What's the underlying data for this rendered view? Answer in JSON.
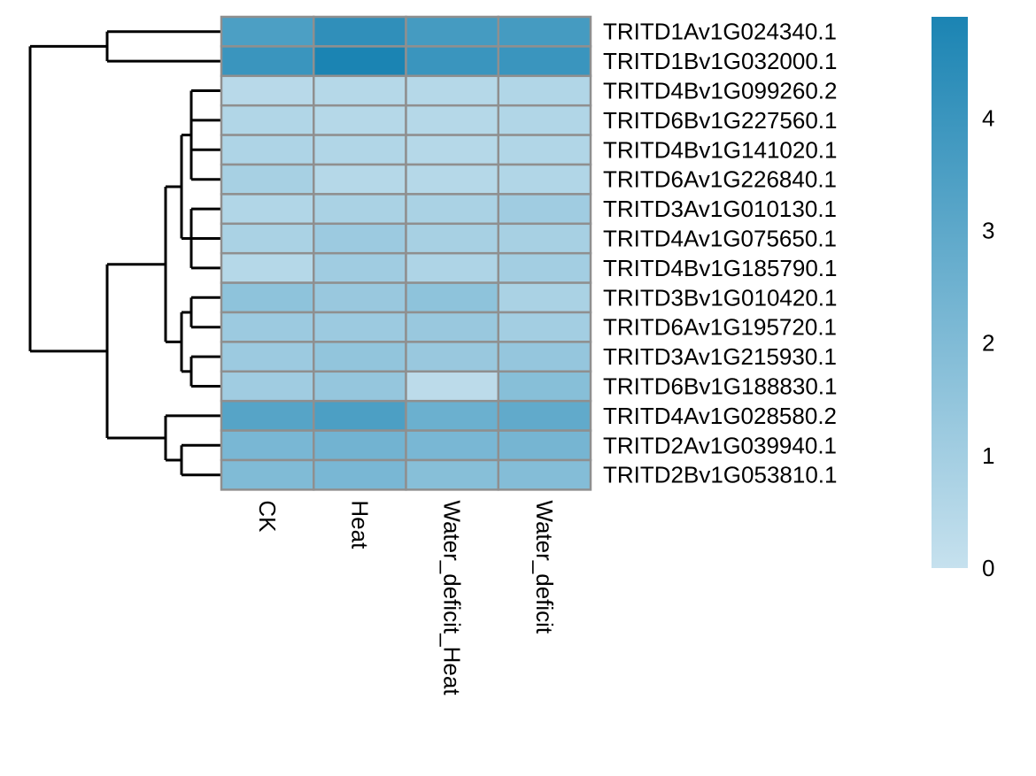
{
  "chart_data": {
    "type": "heatmap",
    "title": "",
    "columns": [
      "CK",
      "Heat",
      "Water_deficit_Heat",
      "Water_deficit"
    ],
    "rows": [
      "TRITD1Av1G024340.1",
      "TRITD1Bv1G032000.1",
      "TRITD4Bv1G099260.2",
      "TRITD6Bv1G227560.1",
      "TRITD4Bv1G141020.1",
      "TRITD6Av1G226840.1",
      "TRITD3Av1G010130.1",
      "TRITD4Av1G075650.1",
      "TRITD4Bv1G185790.1",
      "TRITD3Bv1G010420.1",
      "TRITD6Av1G195720.1",
      "TRITD3Av1G215930.1",
      "TRITD6Bv1G188830.1",
      "TRITD4Av1G028580.2",
      "TRITD2Av1G039940.1",
      "TRITD2Bv1G053810.1"
    ],
    "values": [
      [
        3.5,
        4.3,
        3.7,
        3.7
      ],
      [
        4.0,
        4.9,
        4.0,
        4.0
      ],
      [
        0.4,
        0.5,
        0.5,
        0.6
      ],
      [
        0.6,
        0.5,
        0.5,
        0.6
      ],
      [
        0.7,
        0.6,
        0.5,
        0.6
      ],
      [
        0.9,
        0.5,
        0.5,
        0.6
      ],
      [
        0.6,
        0.8,
        0.8,
        1.1
      ],
      [
        0.8,
        1.2,
        0.9,
        0.9
      ],
      [
        0.5,
        1.1,
        0.7,
        1.0
      ],
      [
        1.6,
        1.3,
        1.6,
        0.8
      ],
      [
        1.2,
        1.2,
        1.3,
        1.0
      ],
      [
        1.2,
        1.5,
        1.3,
        1.4
      ],
      [
        1.1,
        1.4,
        0.3,
        1.8
      ],
      [
        3.2,
        3.5,
        2.6,
        2.9
      ],
      [
        2.2,
        2.4,
        2.2,
        2.3
      ],
      [
        2.0,
        2.2,
        1.8,
        1.9
      ]
    ],
    "legend": {
      "range": [
        0,
        4.9
      ],
      "ticks": [
        0,
        1,
        2,
        3,
        4
      ],
      "color_low": "#c6e1ee",
      "color_high": "#1b84b3"
    },
    "row_dendrogram": {
      "children": [
        {
          "children": [
            0,
            1
          ]
        },
        {
          "children": [
            {
              "children": [
                {
                  "children": [
                    {
                      "children": [
                        2,
                        3,
                        4,
                        5
                      ]
                    },
                    {
                      "children": [
                        6,
                        7,
                        8
                      ]
                    }
                  ]
                },
                {
                  "children": [
                    {
                      "children": [
                        9,
                        10
                      ]
                    },
                    {
                      "children": [
                        11,
                        12
                      ]
                    }
                  ]
                }
              ]
            },
            {
              "children": [
                13,
                {
                  "children": [
                    14,
                    15
                  ]
                }
              ]
            }
          ]
        }
      ]
    },
    "cell_border_color": "#8f8f8f"
  }
}
